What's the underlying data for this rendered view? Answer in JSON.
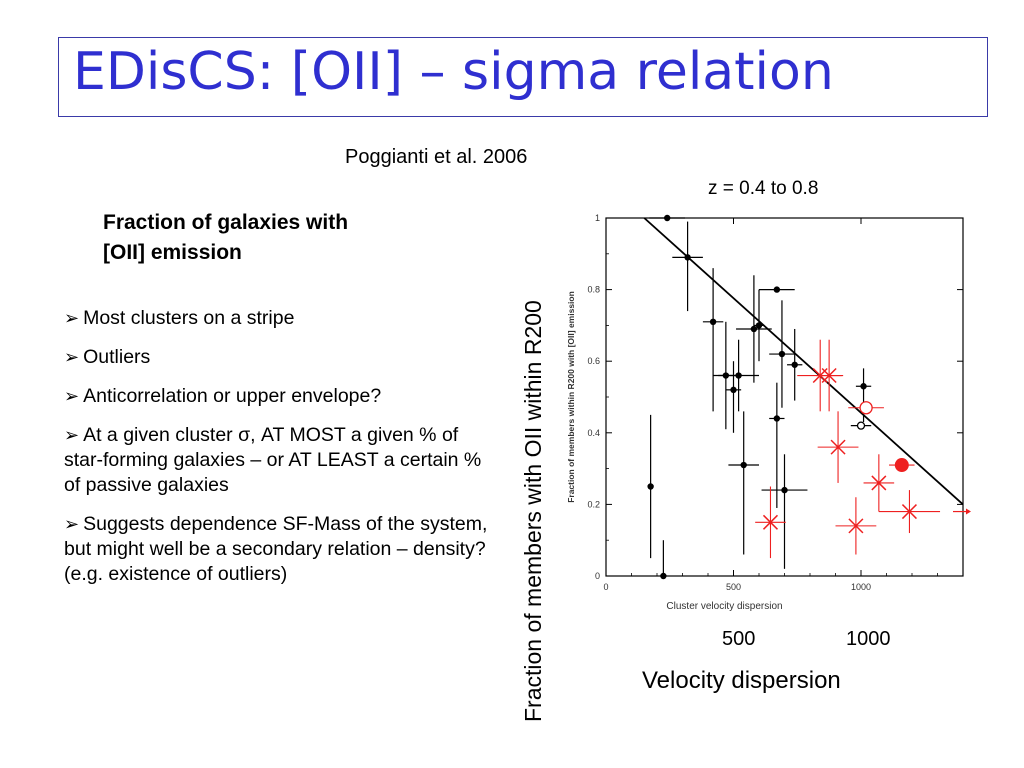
{
  "title": "EDisCS: [OII] – sigma relation",
  "citation": "Poggianti et al.  2006",
  "redshift_label": "z = 0.4  to 0.8",
  "subtitle_lines": [
    "Fraction of galaxies with",
    "[OII] emission"
  ],
  "bullets": [
    "Most clusters on a stripe",
    "Outliers",
    "Anticorrelation or upper envelope?",
    "At a given cluster σ, AT MOST a given % of star-forming galaxies – or AT LEAST a certain % of passive galaxies",
    "Suggests dependence SF-Mass of the system, but might well be a secondary relation – density? (e.g. existence of outliers)"
  ],
  "outer_ylabel": "Fraction of members with OII  within R200",
  "outer_xlabel": "Velocity dispersion",
  "outer_xticks": [
    "500",
    "1000"
  ],
  "colors": {
    "title": "#2f2fd0",
    "black_points": "#000000",
    "red_points": "#ee2020"
  },
  "chart_data": {
    "type": "scatter",
    "xlabel": "Cluster velocity dispersion",
    "ylabel": "Fraction of members within R200 with [OII] emission",
    "xlim": [
      0,
      1400
    ],
    "ylim": [
      0,
      1
    ],
    "xticks": [
      "0",
      "500",
      "1000"
    ],
    "yticks": [
      "0",
      "0.2",
      "0.4",
      "0.6",
      "0.8",
      "1"
    ],
    "fit_line": {
      "x": [
        150,
        1400
      ],
      "y": [
        1.0,
        0.2
      ]
    },
    "series": [
      {
        "marker": "filled-circle",
        "color": "#000000",
        "points": [
          {
            "x": 240,
            "y": 1.0,
            "ex": 70,
            "ey": [
              0.0,
              0.0
            ]
          },
          {
            "x": 320,
            "y": 0.89,
            "ex": 60,
            "ey": [
              0.15,
              0.1
            ]
          },
          {
            "x": 420,
            "y": 0.71,
            "ex": 40,
            "ey": [
              0.25,
              0.15
            ]
          },
          {
            "x": 470,
            "y": 0.56,
            "ex": 50,
            "ey": [
              0.15,
              0.15
            ]
          },
          {
            "x": 500,
            "y": 0.52,
            "ex": 30,
            "ey": [
              0.12,
              0.08
            ]
          },
          {
            "x": 520,
            "y": 0.56,
            "ex": 80,
            "ey": [
              0.1,
              0.1
            ]
          },
          {
            "x": 540,
            "y": 0.31,
            "ex": 60,
            "ey": [
              0.25,
              0.15
            ]
          },
          {
            "x": 580,
            "y": 0.69,
            "ex": 70,
            "ey": [
              0.15,
              0.15
            ]
          },
          {
            "x": 600,
            "y": 0.7,
            "ex": 20,
            "ey": [
              0.1,
              0.1
            ]
          },
          {
            "x": 670,
            "y": 0.8,
            "ex": 70,
            "ey": [
              0.0,
              0.0
            ]
          },
          {
            "x": 670,
            "y": 0.44,
            "ex": 30,
            "ey": [
              0.25,
              0.1
            ]
          },
          {
            "x": 690,
            "y": 0.62,
            "ex": 50,
            "ey": [
              0.15,
              0.15
            ]
          },
          {
            "x": 700,
            "y": 0.24,
            "ex": 90,
            "ey": [
              0.22,
              0.1
            ]
          },
          {
            "x": 740,
            "y": 0.59,
            "ex": 30,
            "ey": [
              0.1,
              0.1
            ]
          },
          {
            "x": 1010,
            "y": 0.53,
            "ex": 30,
            "ey": [
              0.1,
              0.05
            ]
          },
          {
            "x": 175,
            "y": 0.25,
            "ex": 0,
            "ey": [
              0.2,
              0.2
            ]
          },
          {
            "x": 225,
            "y": 0.0,
            "ex": 0,
            "ey": [
              0.0,
              0.1
            ]
          }
        ]
      },
      {
        "marker": "open-circle",
        "color": "#000000",
        "points": [
          {
            "x": 1000,
            "y": 0.42,
            "ex": 40,
            "ey": [
              0.0,
              0.0
            ]
          }
        ]
      },
      {
        "marker": "x-cross",
        "color": "#ee2020",
        "points": [
          {
            "x": 645,
            "y": 0.15,
            "ex": 60,
            "ey": [
              0.1,
              0.1
            ]
          },
          {
            "x": 840,
            "y": 0.56,
            "ex": 90,
            "ey": [
              0.1,
              0.1
            ]
          },
          {
            "x": 875,
            "y": 0.56,
            "ex": 50,
            "ey": [
              0.1,
              0.1
            ]
          },
          {
            "x": 910,
            "y": 0.36,
            "ex": 80,
            "ey": [
              0.1,
              0.1
            ]
          },
          {
            "x": 980,
            "y": 0.14,
            "ex": 80,
            "ey": [
              0.08,
              0.08
            ]
          },
          {
            "x": 1070,
            "y": 0.26,
            "ex": 60,
            "ey": [
              0.08,
              0.08
            ]
          },
          {
            "x": 1190,
            "y": 0.18,
            "ex": 120,
            "ey": [
              0.06,
              0.06
            ]
          }
        ]
      },
      {
        "marker": "open-circle",
        "color": "#ee2020",
        "points": [
          {
            "x": 1020,
            "y": 0.47,
            "ex": 70,
            "ey": [
              0.0,
              0.0
            ]
          }
        ]
      },
      {
        "marker": "big-filled-circle",
        "color": "#ee2020",
        "points": [
          {
            "x": 1160,
            "y": 0.31,
            "ex": 50,
            "ey": [
              0.0,
              0.0
            ]
          }
        ]
      }
    ]
  }
}
